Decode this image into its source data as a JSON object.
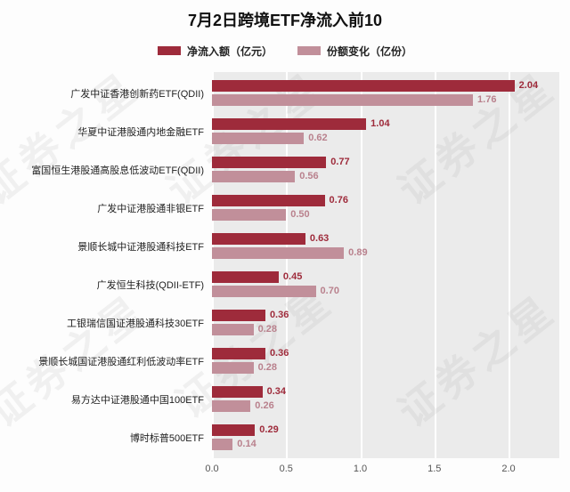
{
  "page": {
    "title": "7月2日跨境ETF净流入前10",
    "watermark": "证券之星"
  },
  "legend": {
    "items": [
      {
        "label": "净流入额（亿元）",
        "color": "#9e2b3b"
      },
      {
        "label": "份额变化（亿份）",
        "color": "#c18f9a"
      }
    ]
  },
  "chart_data": {
    "type": "bar",
    "orientation": "horizontal",
    "title": "7月2日跨境ETF净流入前10",
    "categories": [
      "广发中证香港创新药ETF(QDII)",
      "华夏中证港股通内地金融ETF",
      "富国恒生港股通高股息低波动ETF(QDII)",
      "广发中证港股通非银ETF",
      "景顺长城中证港股通科技ETF",
      "广发恒生科技(QDII-ETF)",
      "工银瑞信国证港股通科技30ETF",
      "景顺长城国证港股通红利低波动率ETF",
      "易方达中证港股通中国100ETF",
      "博时标普500ETF"
    ],
    "series": [
      {
        "name": "净流入额（亿元）",
        "color": "#9e2b3b",
        "label_color": "#9e2b3b",
        "values": [
          2.04,
          1.04,
          0.77,
          0.76,
          0.63,
          0.45,
          0.36,
          0.36,
          0.34,
          0.29
        ]
      },
      {
        "name": "份额变化（亿份）",
        "color": "#c18f9a",
        "label_color": "#b9818d",
        "values": [
          1.76,
          0.62,
          0.56,
          0.5,
          0.89,
          0.7,
          0.28,
          0.28,
          0.26,
          0.14
        ]
      }
    ],
    "xlim": [
      0,
      2.0
    ],
    "xticks": [
      0.0,
      0.5,
      1.0,
      1.5,
      2.0
    ],
    "grid": true,
    "plot_background": "#ebebeb",
    "legend_position": "top"
  }
}
